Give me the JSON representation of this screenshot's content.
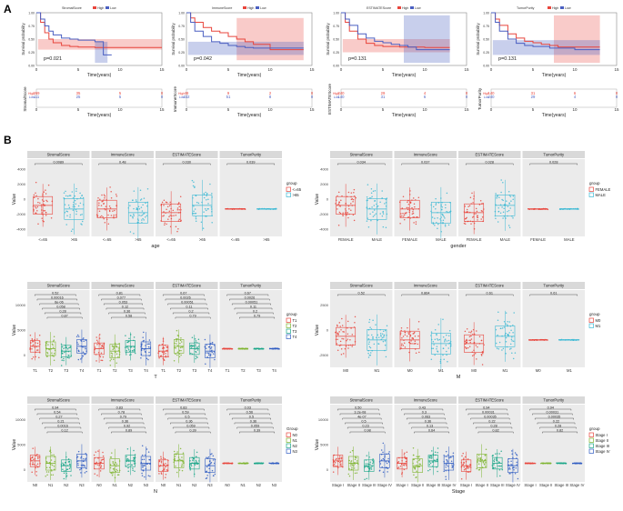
{
  "panels": {
    "a": "A",
    "b": "B"
  },
  "colors": {
    "high": "#e8453c",
    "low": "#4a5fc1",
    "panel_bg": "#ebebeb",
    "strip_bg": "#d9d9d9"
  },
  "chart_data": {
    "km": [
      {
        "legend_title": "StromalScore",
        "p": "p=0.021",
        "xlabel": "Time(years)",
        "ylabel": "Survival probability",
        "risk_ylabel": "StromalScore",
        "risk_high": [
          "269",
          "35",
          "5",
          "0"
        ],
        "risk_low": [
          "111",
          "25",
          "5",
          "0"
        ],
        "high_curve": [
          [
            0,
            1
          ],
          [
            0.5,
            0.82
          ],
          [
            1,
            0.62
          ],
          [
            1.5,
            0.5
          ],
          [
            2,
            0.43
          ],
          [
            3,
            0.38
          ],
          [
            4,
            0.36
          ],
          [
            5,
            0.35
          ],
          [
            6,
            0.35
          ],
          [
            7,
            0.34
          ],
          [
            8,
            0.34
          ],
          [
            10,
            0.34
          ],
          [
            15,
            0.34
          ]
        ],
        "low_curve": [
          [
            0,
            1
          ],
          [
            0.5,
            0.88
          ],
          [
            1,
            0.75
          ],
          [
            1.5,
            0.65
          ],
          [
            2,
            0.58
          ],
          [
            3,
            0.52
          ],
          [
            4,
            0.5
          ],
          [
            5,
            0.48
          ],
          [
            6,
            0.48
          ],
          [
            7,
            0.45
          ],
          [
            8,
            0.2
          ],
          [
            9,
            0.2
          ]
        ],
        "high_band": [
          [
            0.2,
            0.3
          ],
          [
            15,
            0.5
          ]
        ],
        "low_band": [
          [
            7,
            0.05
          ],
          [
            8.5,
            0.45
          ]
        ]
      },
      {
        "legend_title": "ImmuneScore",
        "p": "p=0.042",
        "xlabel": "Time(years)",
        "ylabel": "Survival probability",
        "risk_ylabel": "ImmuneScore",
        "risk_high": [
          "48",
          "9",
          "2",
          "0"
        ],
        "risk_low": [
          "332",
          "51",
          "8",
          "0"
        ],
        "high_curve": [
          [
            0,
            1
          ],
          [
            0.5,
            0.9
          ],
          [
            1,
            0.82
          ],
          [
            2,
            0.72
          ],
          [
            3,
            0.65
          ],
          [
            4,
            0.62
          ],
          [
            5,
            0.55
          ],
          [
            6,
            0.5
          ],
          [
            7,
            0.45
          ],
          [
            8,
            0.4
          ],
          [
            10,
            0.3
          ],
          [
            14,
            0.3
          ]
        ],
        "low_curve": [
          [
            0,
            1
          ],
          [
            0.5,
            0.82
          ],
          [
            1,
            0.65
          ],
          [
            2,
            0.55
          ],
          [
            3,
            0.45
          ],
          [
            4,
            0.42
          ],
          [
            5,
            0.38
          ],
          [
            6,
            0.36
          ],
          [
            7,
            0.34
          ],
          [
            8,
            0.33
          ],
          [
            10,
            0.33
          ],
          [
            14,
            0.33
          ]
        ],
        "high_band": [
          [
            6,
            0.1
          ],
          [
            14,
            0.9
          ]
        ],
        "low_band": [
          [
            0.2,
            0.2
          ],
          [
            14,
            0.45
          ]
        ]
      },
      {
        "legend_title": "ESTIMATEScore",
        "p": "p=0.131",
        "xlabel": "Time(years)",
        "ylabel": "Survival probability",
        "risk_ylabel": "ESTIMATEScore",
        "risk_high": [
          "240",
          "29",
          "4",
          "0"
        ],
        "risk_low": [
          "140",
          "31",
          "6",
          "0"
        ],
        "high_curve": [
          [
            0,
            1
          ],
          [
            0.5,
            0.82
          ],
          [
            1,
            0.65
          ],
          [
            2,
            0.5
          ],
          [
            3,
            0.42
          ],
          [
            4,
            0.38
          ],
          [
            5,
            0.36
          ],
          [
            7,
            0.35
          ],
          [
            10,
            0.34
          ],
          [
            13,
            0.34
          ]
        ],
        "low_curve": [
          [
            0,
            1
          ],
          [
            0.5,
            0.88
          ],
          [
            1,
            0.76
          ],
          [
            2,
            0.6
          ],
          [
            3,
            0.52
          ],
          [
            4,
            0.46
          ],
          [
            5,
            0.43
          ],
          [
            6,
            0.4
          ],
          [
            7,
            0.38
          ],
          [
            8,
            0.35
          ],
          [
            9,
            0.3
          ],
          [
            13,
            0.3
          ]
        ],
        "high_band": [
          [
            0.2,
            0.25
          ],
          [
            13,
            0.5
          ]
        ],
        "low_band": [
          [
            7.5,
            0.05
          ],
          [
            13,
            0.95
          ]
        ]
      },
      {
        "legend_title": "TumorPurity",
        "p": "p=0.131",
        "xlabel": "Time(years)",
        "ylabel": "Survival probability",
        "risk_ylabel": "TumorPurity",
        "risk_high": [
          "140",
          "31",
          "6",
          "0"
        ],
        "risk_low": [
          "240",
          "29",
          "4",
          "0"
        ],
        "high_curve": [
          [
            0,
            1
          ],
          [
            0.5,
            0.88
          ],
          [
            1,
            0.76
          ],
          [
            2,
            0.6
          ],
          [
            3,
            0.52
          ],
          [
            4,
            0.46
          ],
          [
            5,
            0.43
          ],
          [
            6,
            0.4
          ],
          [
            7,
            0.38
          ],
          [
            8,
            0.35
          ],
          [
            9,
            0.35
          ],
          [
            13,
            0.35
          ]
        ],
        "low_curve": [
          [
            0,
            1
          ],
          [
            0.5,
            0.82
          ],
          [
            1,
            0.65
          ],
          [
            2,
            0.5
          ],
          [
            3,
            0.42
          ],
          [
            4,
            0.38
          ],
          [
            5,
            0.36
          ],
          [
            7,
            0.33
          ],
          [
            10,
            0.3
          ],
          [
            13,
            0.3
          ]
        ],
        "high_band": [
          [
            7.5,
            0.05
          ],
          [
            13,
            0.95
          ]
        ],
        "low_band": [
          [
            0.2,
            0.2
          ],
          [
            13,
            0.48
          ]
        ]
      }
    ],
    "km_legend": {
      "strata_label": "Strata",
      "high": "High",
      "low": "Low"
    },
    "km_xticks": [
      "0",
      "5",
      "10",
      "15"
    ],
    "km_yticks": [
      "0.00",
      "0.25",
      "0.50",
      "0.75",
      "1.00"
    ],
    "box_facets": [
      "StromalScore",
      "ImmuneScore",
      "ESTIMATEScore",
      "TumorPurity"
    ],
    "box_ylabel": "Value",
    "box_ylim": [
      -4000,
      6000
    ],
    "box_ylim_tall": [
      -4000,
      10000
    ],
    "box_groups": [
      {
        "name": "age",
        "xlabel": "age",
        "legend_title": "group",
        "levels": [
          "<=65",
          ">65"
        ],
        "colors": [
          "#e8453c",
          "#3cb9d4"
        ],
        "yticks": [
          "-4000",
          "-2000",
          "0",
          "2000",
          "4000"
        ],
        "pvals": [
          [
            "0.0089"
          ],
          [
            "0.48"
          ],
          [
            "0.030"
          ],
          [
            "0.039"
          ]
        ]
      },
      {
        "name": "gender",
        "xlabel": "gender",
        "legend_title": "group",
        "levels": [
          "FEMALE",
          "MALE"
        ],
        "colors": [
          "#e8453c",
          "#3cb9d4"
        ],
        "yticks": [
          "-4000",
          "-2000",
          "0",
          "2000",
          "4000"
        ],
        "pvals": [
          [
            "0.034"
          ],
          [
            "0.037"
          ],
          [
            "0.028"
          ],
          [
            "0.028"
          ]
        ]
      },
      {
        "name": "T",
        "xlabel": "T",
        "legend_title": "group",
        "levels": [
          "T1",
          "T2",
          "T3",
          "T4"
        ],
        "colors": [
          "#e8453c",
          "#7fb531",
          "#1aa688",
          "#2f5cc2"
        ],
        "yticks": [
          "0",
          "5000",
          "10000"
        ],
        "pvals": [
          [
            "0.52",
            "0.00016",
            "6e-06",
            "0.058",
            "0.28",
            "0.87"
          ],
          [
            "0.81",
            "0.077",
            "0.053",
            "0.12",
            "0.36",
            "0.58"
          ],
          [
            "0.67",
            "0.0026",
            "0.00051",
            "0.11",
            "0.2",
            "0.79"
          ],
          [
            "0.67",
            "0.0026",
            "0.00051",
            "0.11",
            "0.2",
            "0.79"
          ]
        ]
      },
      {
        "name": "M",
        "xlabel": "M",
        "legend_title": "group",
        "levels": [
          "M0",
          "M1"
        ],
        "colors": [
          "#e8453c",
          "#3cb9d4"
        ],
        "yticks": [
          "-2500",
          "0",
          "2500"
        ],
        "pvals": [
          [
            "0.52"
          ],
          [
            "0.864"
          ],
          [
            "0.61"
          ],
          [
            "0.61"
          ]
        ]
      },
      {
        "name": "N",
        "xlabel": "N",
        "legend_title": "Group",
        "levels": [
          "N0",
          "N1",
          "N2",
          "N3"
        ],
        "colors": [
          "#e8453c",
          "#7fb531",
          "#1aa688",
          "#2f5cc2"
        ],
        "yticks": [
          "0",
          "5000",
          "10000"
        ],
        "pvals": [
          [
            "0.94",
            "0.54",
            "0.27",
            "0.21",
            "0.0016",
            "0.12"
          ],
          [
            "0.83",
            "0.78",
            "0.79",
            "0.36",
            "0.92",
            "0.89"
          ],
          [
            "0.83",
            "0.59",
            "0.5",
            "0.36",
            "0.059",
            "0.39"
          ],
          [
            "0.03",
            "0.56",
            "0.5",
            "0.36",
            "0.059",
            "0.39"
          ]
        ]
      },
      {
        "name": "Stage",
        "xlabel": "Stage",
        "legend_title": "group",
        "levels": [
          "Stage I",
          "Stage II",
          "Stage III",
          "Stage IV"
        ],
        "colors": [
          "#e8453c",
          "#7fb531",
          "#1aa688",
          "#2f5cc2"
        ],
        "yticks": [
          "0",
          "5000",
          "10000"
        ],
        "pvals": [
          [
            "0.50",
            "3.2e-08",
            "4e-07",
            "0.5",
            "0.23",
            "0.98"
          ],
          [
            "0.43",
            "0.3",
            "0.063",
            "0.36",
            "0.13",
            "0.64"
          ],
          [
            "0.94",
            "0.00031",
            "0.00035",
            "0.22",
            "0.28",
            "0.82"
          ],
          [
            "0.94",
            "0.00031",
            "0.00035",
            "0.22",
            "0.28",
            "0.82"
          ]
        ]
      }
    ]
  }
}
